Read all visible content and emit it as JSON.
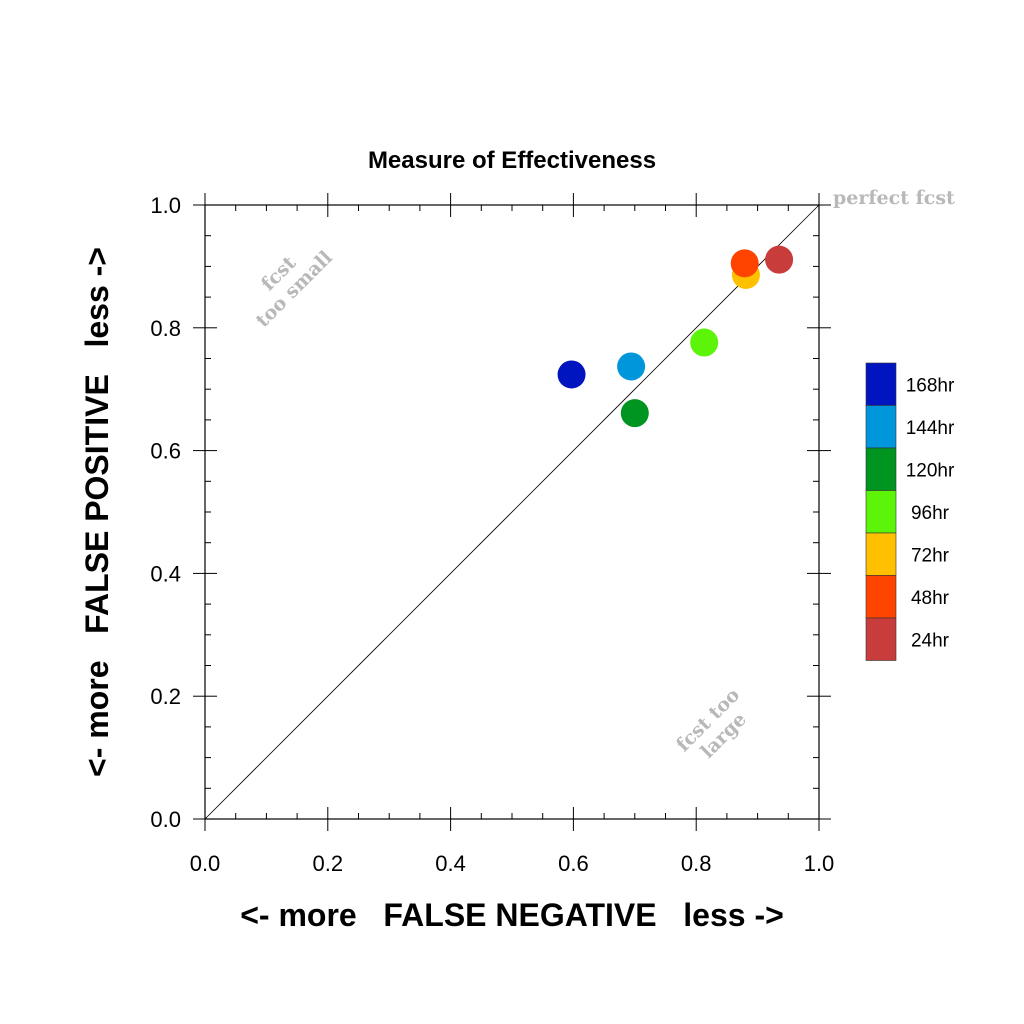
{
  "chart_data": {
    "type": "scatter",
    "title": "Measure of Effectiveness",
    "xlabel": "<- more   FALSE NEGATIVE   less ->",
    "ylabel": "<- more   FALSE POSITIVE   less ->",
    "xlim": [
      0.0,
      1.0
    ],
    "ylim": [
      0.0,
      1.0
    ],
    "x_ticks": [
      "0.0",
      "0.2",
      "0.4",
      "0.6",
      "0.8",
      "1.0"
    ],
    "y_ticks": [
      "0.0",
      "0.2",
      "0.4",
      "0.6",
      "0.8",
      "1.0"
    ],
    "grid": false,
    "legend_position": "right",
    "annotations": {
      "perfect": "perfect fcst",
      "too_small_line1": "fcst",
      "too_small_line2": "too small",
      "too_large_line1": "fcst too",
      "too_large_line2": "large"
    },
    "series": [
      {
        "name": "168hr",
        "color": "#0015c0",
        "x": 0.597,
        "y": 0.724
      },
      {
        "name": "144hr",
        "color": "#0096db",
        "x": 0.694,
        "y": 0.737
      },
      {
        "name": "120hr",
        "color": "#009420",
        "x": 0.7,
        "y": 0.661
      },
      {
        "name": "96hr",
        "color": "#5cf50a",
        "x": 0.813,
        "y": 0.776
      },
      {
        "name": "72hr",
        "color": "#ffc000",
        "x": 0.881,
        "y": 0.886
      },
      {
        "name": "48hr",
        "color": "#ff4400",
        "x": 0.879,
        "y": 0.905
      },
      {
        "name": "24hr",
        "color": "#c83c3c",
        "x": 0.935,
        "y": 0.911
      }
    ]
  }
}
